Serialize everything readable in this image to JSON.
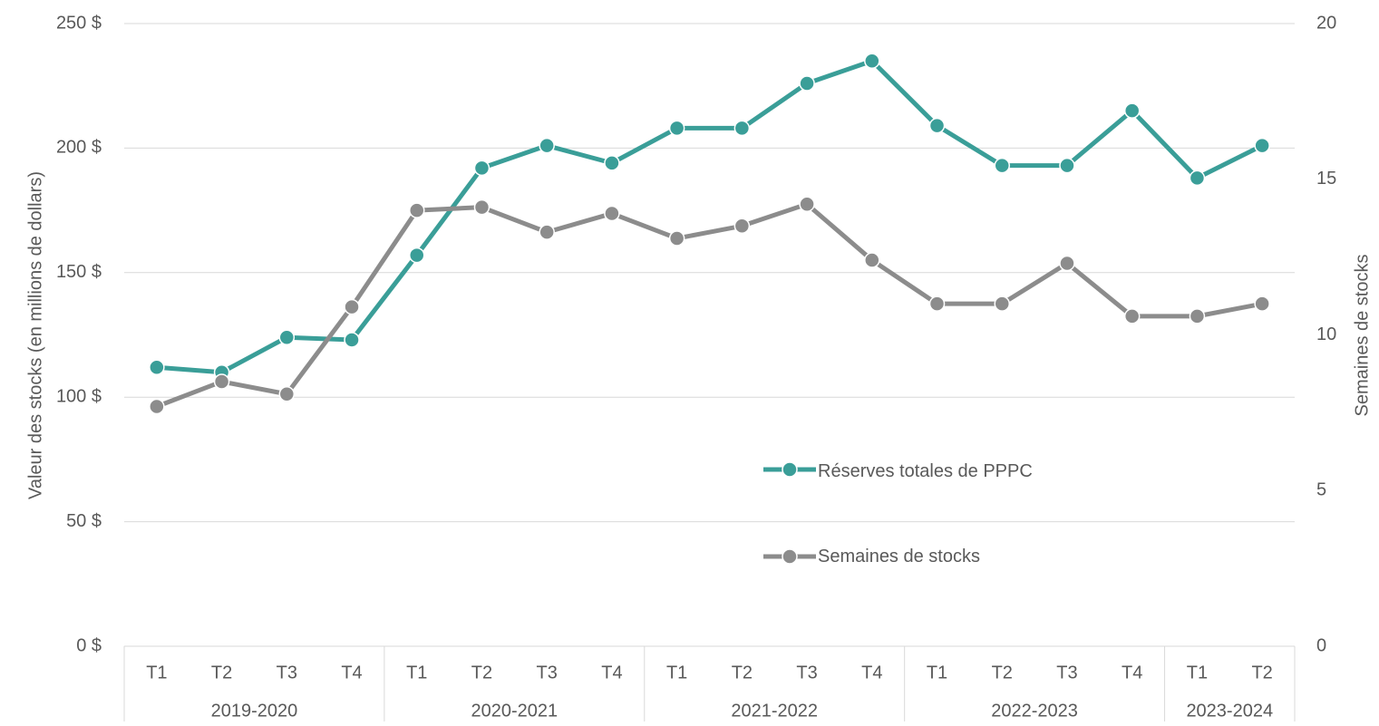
{
  "chart_data": {
    "type": "line",
    "categories": [
      "T1",
      "T2",
      "T3",
      "T4",
      "T1",
      "T2",
      "T3",
      "T4",
      "T1",
      "T2",
      "T3",
      "T4",
      "T1",
      "T2",
      "T3",
      "T4",
      "T1",
      "T2"
    ],
    "category_groups": [
      {
        "label": "2019-2020",
        "span": 4
      },
      {
        "label": "2020-2021",
        "span": 4
      },
      {
        "label": "2021-2022",
        "span": 4
      },
      {
        "label": "2022-2023",
        "span": 4
      },
      {
        "label": "2023-2024",
        "span": 2
      }
    ],
    "ylabel": "Valeur des stocks (en millions de dollars)",
    "y2label": "Semaines de stocks",
    "ylim": [
      0,
      250
    ],
    "yticks": [
      {
        "value": 0,
        "label": "0 $"
      },
      {
        "value": 50,
        "label": "50 $"
      },
      {
        "value": 100,
        "label": "100 $"
      },
      {
        "value": 150,
        "label": "150 $"
      },
      {
        "value": 200,
        "label": "200 $"
      },
      {
        "value": 250,
        "label": "250 $"
      }
    ],
    "y2lim": [
      0,
      20
    ],
    "y2ticks": [
      0,
      5,
      10,
      15,
      20
    ],
    "grid": true,
    "series": [
      {
        "name": "Réserves totales de PPPC",
        "color": "#3a9e98",
        "values": [
          112,
          110,
          124,
          123,
          157,
          192,
          201,
          194,
          208,
          208,
          226,
          235,
          209,
          193,
          193,
          215,
          188,
          201
        ]
      },
      {
        "name": "Semaines de stocks",
        "color": "#8c8c8c",
        "axis": "y2",
        "values": [
          7.7,
          8.5,
          8.1,
          10.9,
          14.0,
          14.1,
          13.3,
          13.9,
          13.1,
          13.5,
          14.2,
          12.4,
          11.0,
          11.0,
          12.3,
          10.6,
          10.6,
          11.0
        ]
      }
    ]
  }
}
